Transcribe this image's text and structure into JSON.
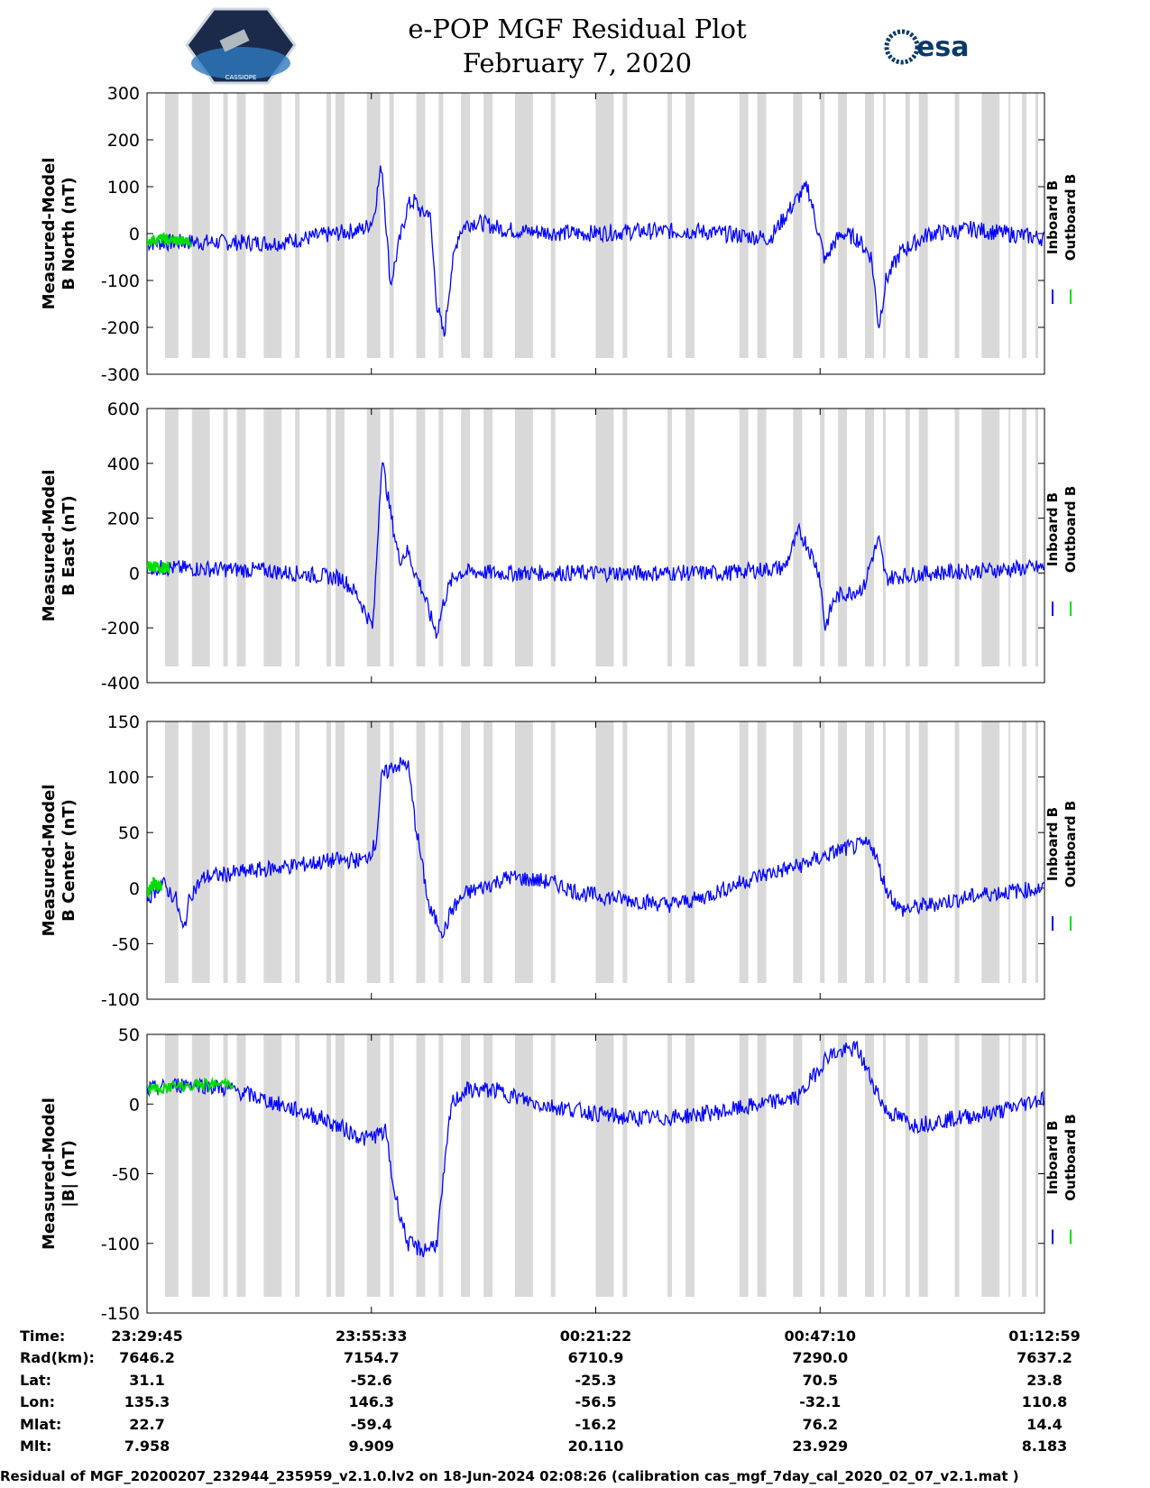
{
  "title_line1": "e-POP MGF Residual Plot",
  "title_line2": "February 7, 2020",
  "logo_left_text": "CASSIOPE",
  "logo_right_text": "esa",
  "footer": "Residual of MGF_20200207_232944_235959_v2.1.0.lv2 on 18-Jun-2024 02:08:26 (calibration cas_mgf_7day_cal_2020_02_07_v2.1.mat )",
  "colors": {
    "inboard": "#0000ff",
    "outboard": "#00dd00",
    "shade": "#d9d9d9"
  },
  "time_table": {
    "labels": [
      "Time:",
      "Rad(km):",
      "Lat:",
      "Lon:",
      "Mlat:",
      "Mlt:"
    ],
    "columns": [
      [
        "23:29:45",
        "7646.2",
        "31.1",
        "135.3",
        "22.7",
        "7.958"
      ],
      [
        "23:55:33",
        "7154.7",
        "-52.6",
        "146.3",
        "-59.4",
        "9.909"
      ],
      [
        "00:21:22",
        "6710.9",
        "-25.3",
        "-56.5",
        "-16.2",
        "20.110"
      ],
      [
        "00:47:10",
        "7290.0",
        "70.5",
        "-32.1",
        "76.2",
        "23.929"
      ],
      [
        "01:12:59",
        "7637.2",
        "23.8",
        "110.8",
        "14.4",
        "8.183"
      ]
    ]
  },
  "chart_data": [
    {
      "type": "line",
      "ylabel_line1": "Measured-Model",
      "ylabel_line2": "B North (nT)",
      "ylim": [
        -300,
        300
      ],
      "yticks": [
        300,
        200,
        100,
        0,
        -100,
        -200,
        -300
      ],
      "x_range_s": [
        0,
        6194
      ],
      "series": [
        {
          "name": "Inboard B",
          "x_s": [
            0,
            300,
            900,
            1500,
            1560,
            1620,
            1680,
            1740,
            1800,
            1850,
            1900,
            1950,
            2000,
            2050,
            2100,
            2150,
            2200,
            2260,
            2340,
            2450,
            2600,
            3000,
            3400,
            3800,
            4300,
            4500,
            4560,
            4620,
            4680,
            4740,
            4800,
            4900,
            5000,
            5050,
            5100,
            5200,
            5400,
            5600,
            5700,
            5800,
            6194
          ],
          "values": [
            -20,
            -18,
            -20,
            10,
            30,
            150,
            -110,
            -20,
            60,
            70,
            40,
            50,
            -150,
            -220,
            -80,
            0,
            20,
            25,
            20,
            10,
            5,
            0,
            5,
            5,
            -10,
            80,
            100,
            20,
            -60,
            -20,
            0,
            -10,
            -50,
            -200,
            -100,
            -40,
            0,
            5,
            10,
            5,
            -10
          ]
        },
        {
          "name": "Outboard B",
          "x_s": [
            0,
            100,
            300
          ],
          "values": [
            -15,
            -12,
            -18
          ]
        }
      ],
      "legend": [
        "Inboard B",
        "Outboard B"
      ]
    },
    {
      "type": "line",
      "ylabel_line1": "Measured-Model",
      "ylabel_line2": "B East (nT)",
      "ylim": [
        -400,
        600
      ],
      "yticks": [
        600,
        400,
        200,
        0,
        -200,
        -400
      ],
      "x_range_s": [
        0,
        6194
      ],
      "series": [
        {
          "name": "Inboard B",
          "x_s": [
            0,
            400,
            800,
            1200,
            1350,
            1450,
            1560,
            1620,
            1680,
            1740,
            1800,
            1850,
            1900,
            1950,
            2000,
            2050,
            2100,
            2150,
            2250,
            2400,
            2800,
            3200,
            3600,
            4000,
            4400,
            4500,
            4560,
            4640,
            4680,
            4740,
            4780,
            4860,
            4950,
            5000,
            5050,
            5100,
            5200,
            5400,
            5600,
            5800,
            6194
          ],
          "values": [
            20,
            15,
            10,
            -10,
            -20,
            -80,
            -200,
            420,
            220,
            50,
            80,
            0,
            -60,
            -150,
            -220,
            -100,
            -30,
            0,
            5,
            0,
            0,
            0,
            0,
            0,
            20,
            150,
            100,
            0,
            -200,
            -100,
            -80,
            -70,
            -50,
            50,
            120,
            -20,
            -10,
            0,
            5,
            10,
            20
          ]
        },
        {
          "name": "Outboard B",
          "x_s": [
            0,
            100,
            150
          ],
          "values": [
            25,
            20,
            18
          ]
        }
      ],
      "legend": [
        "Inboard B",
        "Outboard B"
      ]
    },
    {
      "type": "line",
      "ylabel_line1": "Measured-Model",
      "ylabel_line2": "B Center (nT)",
      "ylim": [
        -100,
        150
      ],
      "yticks": [
        150,
        100,
        50,
        0,
        -50,
        -100
      ],
      "x_range_s": [
        0,
        6194
      ],
      "series": [
        {
          "name": "Inboard B",
          "x_s": [
            0,
            100,
            200,
            250,
            300,
            400,
            700,
            1000,
            1300,
            1500,
            1580,
            1620,
            1700,
            1800,
            1850,
            1950,
            2050,
            2100,
            2200,
            2500,
            2800,
            3000,
            3300,
            3600,
            3800,
            4200,
            4500,
            4800,
            5000,
            5100,
            5200,
            5400,
            5600,
            5800,
            6194
          ],
          "values": [
            -10,
            5,
            -10,
            -40,
            -5,
            10,
            15,
            20,
            25,
            25,
            40,
            100,
            110,
            112,
            60,
            -20,
            -40,
            -20,
            -5,
            10,
            5,
            -5,
            -10,
            -15,
            -10,
            10,
            20,
            35,
            40,
            0,
            -20,
            -15,
            -10,
            -5,
            0
          ]
        },
        {
          "name": "Outboard B",
          "x_s": [
            0,
            50,
            100
          ],
          "values": [
            -5,
            5,
            0
          ]
        }
      ],
      "legend": [
        "Inboard B",
        "Outboard B"
      ]
    },
    {
      "type": "line",
      "ylabel_line1": "Measured-Model",
      "ylabel_line2": "|B| (nT)",
      "ylim": [
        -150,
        50
      ],
      "yticks": [
        50,
        0,
        -50,
        -100,
        -150
      ],
      "x_range_s": [
        0,
        6194
      ],
      "series": [
        {
          "name": "Inboard B",
          "x_s": [
            0,
            300,
            600,
            900,
            1200,
            1500,
            1650,
            1700,
            1800,
            1900,
            2000,
            2100,
            2200,
            2400,
            2700,
            3000,
            3300,
            3600,
            4000,
            4500,
            4700,
            4900,
            5100,
            5300,
            5600,
            5900,
            6194
          ],
          "values": [
            10,
            15,
            10,
            0,
            -10,
            -25,
            -20,
            -60,
            -100,
            -105,
            -100,
            0,
            10,
            10,
            0,
            -5,
            -10,
            -10,
            -5,
            5,
            35,
            40,
            -5,
            -15,
            -10,
            -5,
            5
          ]
        },
        {
          "name": "Outboard B",
          "x_s": [
            0,
            100,
            600
          ],
          "values": [
            10,
            12,
            15
          ]
        }
      ],
      "legend": [
        "Inboard B",
        "Outboard B"
      ]
    }
  ]
}
